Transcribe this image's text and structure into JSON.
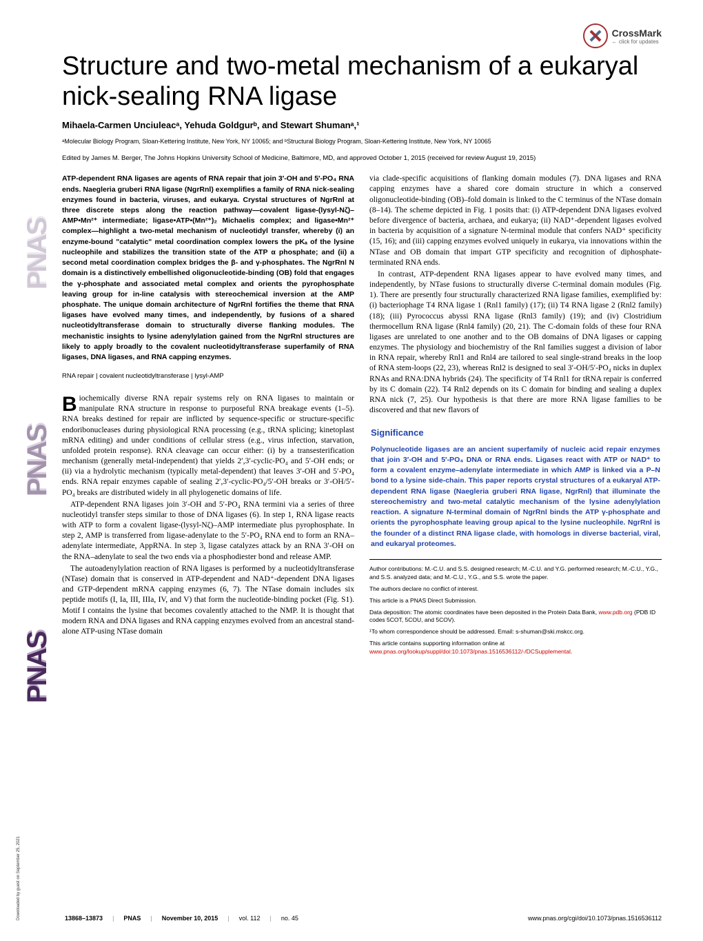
{
  "crossmark": {
    "label": "CrossMark",
    "sublabel": "← click for updates"
  },
  "sidebar": {
    "journal": "PNAS"
  },
  "title": "Structure and two-metal mechanism of a eukaryal nick-sealing RNA ligase",
  "authors": "Mihaela-Carmen Unciuleacᵃ, Yehuda Goldgurᵇ, and Stewart Shumanᵃ,¹",
  "affiliations": "ᵃMolecular Biology Program, Sloan-Kettering Institute, New York, NY 10065; and ᵇStructural Biology Program, Sloan-Kettering Institute, New York, NY 10065",
  "edited": "Edited by James M. Berger, The Johns Hopkins University School of Medicine, Baltimore, MD, and approved October 1, 2015 (received for review August 19, 2015)",
  "abstract": "ATP-dependent RNA ligases are agents of RNA repair that join 3′-OH and 5′-PO₄ RNA ends. Naegleria gruberi RNA ligase (NgrRnl) exemplifies a family of RNA nick-sealing enzymes found in bacteria, viruses, and eukarya. Crystal structures of NgrRnl at three discrete steps along the reaction pathway—covalent ligase-(lysyl-Nζ)–AMP•Mn²⁺ intermediate; ligase•ATP•(Mn²⁺)₂ Michaelis complex; and ligase•Mn²⁺ complex—highlight a two-metal mechanism of nucleotidyl transfer, whereby (i) an enzyme-bound \"catalytic\" metal coordination complex lowers the pKₐ of the lysine nucleophile and stabilizes the transition state of the ATP α phosphate; and (ii) a second metal coordination complex bridges the β- and γ-phosphates. The NgrRnl N domain is a distinctively embellished oligonucleotide-binding (OB) fold that engages the γ-phosphate and associated metal complex and orients the pyrophosphate leaving group for in-line catalysis with stereochemical inversion at the AMP phosphate. The unique domain architecture of NgrRnl fortifies the theme that RNA ligases have evolved many times, and independently, by fusions of a shared nucleotidyltransferase domain to structurally diverse flanking modules. The mechanistic insights to lysine adenylylation gained from the NgrRnl structures are likely to apply broadly to the covalent nucleotidyltransferase superfamily of RNA ligases, DNA ligases, and RNA capping enzymes.",
  "keywords": "RNA repair | covalent nucleotidyltransferase | lysyl-AMP",
  "body_para1": "iochemically diverse RNA repair systems rely on RNA ligases to maintain or manipulate RNA structure in response to purposeful RNA breakage events (1–5). RNA breaks destined for repair are inflicted by sequence-specific or structure-specific endoribonucleases during physiological RNA processing (e.g., tRNA splicing; kinetoplast mRNA editing) and under conditions of cellular stress (e.g., virus infection, starvation, unfolded protein response). RNA cleavage can occur either: (i) by a transesterification mechanism (generally metal-independent) that yields 2′,3′-cyclic-PO₄ and 5′-OH ends; or (ii) via a hydrolytic mechanism (typically metal-dependent) that leaves 3′-OH and 5′-PO₄ ends. RNA repair enzymes capable of sealing 2′,3′-cyclic-PO₄/5′-OH breaks or 3′-OH/5′-PO₄ breaks are distributed widely in all phylogenetic domains of life.",
  "body_para2": "ATP-dependent RNA ligases join 3′-OH and 5′-PO₄ RNA termini via a series of three nucleotidyl transfer steps similar to those of DNA ligases (6). In step 1, RNA ligase reacts with ATP to form a covalent ligase-(lysyl-Nζ)–AMP intermediate plus pyrophosphate. In step 2, AMP is transferred from ligase-adenylate to the 5′-PO₄ RNA end to form an RNA–adenylate intermediate, AppRNA. In step 3, ligase catalyzes attack by an RNA 3′-OH on the RNA–adenylate to seal the two ends via a phosphodiester bond and release AMP.",
  "body_para3": "The autoadenylylation reaction of RNA ligases is performed by a nucleotidyltransferase (NTase) domain that is conserved in ATP-dependent and NAD⁺-dependent DNA ligases and GTP-dependent mRNA capping enzymes (6, 7). The NTase domain includes six peptide motifs (I, Ia, III, IIIa, IV, and V) that form the nucleotide-binding pocket (Fig. S1). Motif I contains the lysine that becomes covalently attached to the NMP. It is thought that modern RNA and DNA ligases and RNA capping enzymes evolved from an ancestral stand-alone ATP-using NTase domain",
  "col2_para1": "via clade-specific acquisitions of flanking domain modules (7). DNA ligases and RNA capping enzymes have a shared core domain structure in which a conserved oligonucleotide-binding (OB)–fold domain is linked to the C terminus of the NTase domain (8–14). The scheme depicted in Fig. 1 posits that: (i) ATP-dependent DNA ligases evolved before divergence of bacteria, archaea, and eukarya; (ii) NAD⁺-dependent ligases evolved in bacteria by acquisition of a signature N-terminal module that confers NAD⁺ specificity (15, 16); and (iii) capping enzymes evolved uniquely in eukarya, via innovations within the NTase and OB domain that impart GTP specificity and recognition of diphosphate-terminated RNA ends.",
  "col2_para2": "In contrast, ATP-dependent RNA ligases appear to have evolved many times, and independently, by NTase fusions to structurally diverse C-terminal domain modules (Fig. 1). There are presently four structurally characterized RNA ligase families, exemplified by: (i) bacteriophage T4 RNA ligase 1 (Rnl1 family) (17); (ii) T4 RNA ligase 2 (Rnl2 family) (18); (iii) Pyrococcus abyssi RNA ligase (Rnl3 family) (19); and (iv) Clostridium thermocellum RNA ligase (Rnl4 family) (20, 21). The C-domain folds of these four RNA ligases are unrelated to one another and to the OB domains of DNA ligases or capping enzymes. The physiology and biochemistry of the Rnl families suggest a division of labor in RNA repair, whereby Rnl1 and Rnl4 are tailored to seal single-strand breaks in the loop of RNA stem-loops (22, 23), whereas Rnl2 is designed to seal 3′-OH/5′-PO₄ nicks in duplex RNAs and RNA:DNA hybrids (24). The specificity of T4 Rnl1 for tRNA repair is conferred by its C domain (22). T4 Rnl2 depends on its C domain for binding and sealing a duplex RNA nick (7, 25). Our hypothesis is that there are more RNA ligase families to be discovered and that new flavors of",
  "significance": {
    "title": "Significance",
    "text": "Polynucleotide ligases are an ancient superfamily of nucleic acid repair enzymes that join 3′-OH and 5′-PO₄ DNA or RNA ends. Ligases react with ATP or NAD⁺ to form a covalent enzyme–adenylate intermediate in which AMP is linked via a P–N bond to a lysine side-chain. This paper reports crystal structures of a eukaryal ATP-dependent RNA ligase (Naegleria gruberi RNA ligase, NgrRnl) that illuminate the stereochemistry and two-metal catalytic mechanism of the lysine adenylylation reaction. A signature N-terminal domain of NgrRnl binds the ATP γ-phosphate and orients the pyrophosphate leaving group apical to the lysine nucleophile. NgrRnl is the founder of a distinct RNA ligase clade, with homologs in diverse bacterial, viral, and eukaryal proteomes."
  },
  "footer_notes": {
    "contributions": "Author contributions: M.-C.U. and S.S. designed research; M.-C.U. and Y.G. performed research; M.-C.U., Y.G., and S.S. analyzed data; and M.-C.U., Y.G., and S.S. wrote the paper.",
    "conflict": "The authors declare no conflict of interest.",
    "submission": "This article is a PNAS Direct Submission.",
    "deposition": "Data deposition: The atomic coordinates have been deposited in the Protein Data Bank, ",
    "deposition_link": "www.pdb.org",
    "deposition_end": " (PDB ID codes 5COT, 5COU, and 5COV).",
    "correspondence": "¹To whom correspondence should be addressed. Email: s-shuman@ski.mskcc.org.",
    "supplemental": "This article contains supporting information online at ",
    "supplemental_link": "www.pnas.org/lookup/suppl/doi:10.1073/pnas.1516536112/-/DCSupplemental",
    "supplemental_end": "."
  },
  "page_footer": {
    "pages": "13868–13873",
    "journal": "PNAS",
    "date": "November 10, 2015",
    "vol": "vol. 112",
    "no": "no. 45",
    "url": "www.pnas.org/cgi/doi/10.1073/pnas.1516536112"
  },
  "download_note": "Downloaded by guest on September 25, 2021",
  "colors": {
    "significance": "#2244aa",
    "link": "#cc0000",
    "pnas": "#4a2a5a"
  }
}
